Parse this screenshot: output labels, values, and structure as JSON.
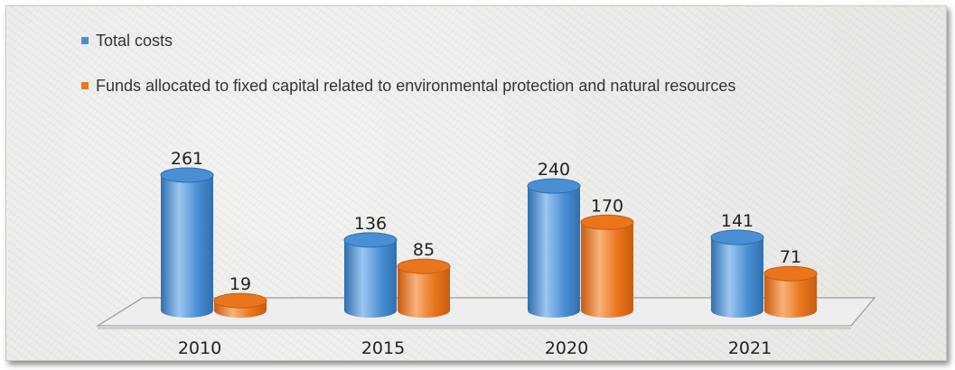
{
  "colors": {
    "total": "#4a8fd4",
    "funds": "#e9751c"
  },
  "chart_data": {
    "type": "bar",
    "categories": [
      "2010",
      "2015",
      "2020",
      "2021"
    ],
    "series": [
      {
        "name": "Total costs",
        "values": [
          261,
          136,
          240,
          141
        ]
      },
      {
        "name": "Funds allocated to fixed capital related to environmental protection and natural resources",
        "values": [
          19,
          85,
          170,
          71
        ]
      }
    ],
    "data_labels": [
      "261",
      "136",
      "240",
      "141",
      "19",
      "85",
      "170",
      "71"
    ],
    "legend_position": "top-left",
    "grid": false,
    "style": "3d-cylinder"
  }
}
